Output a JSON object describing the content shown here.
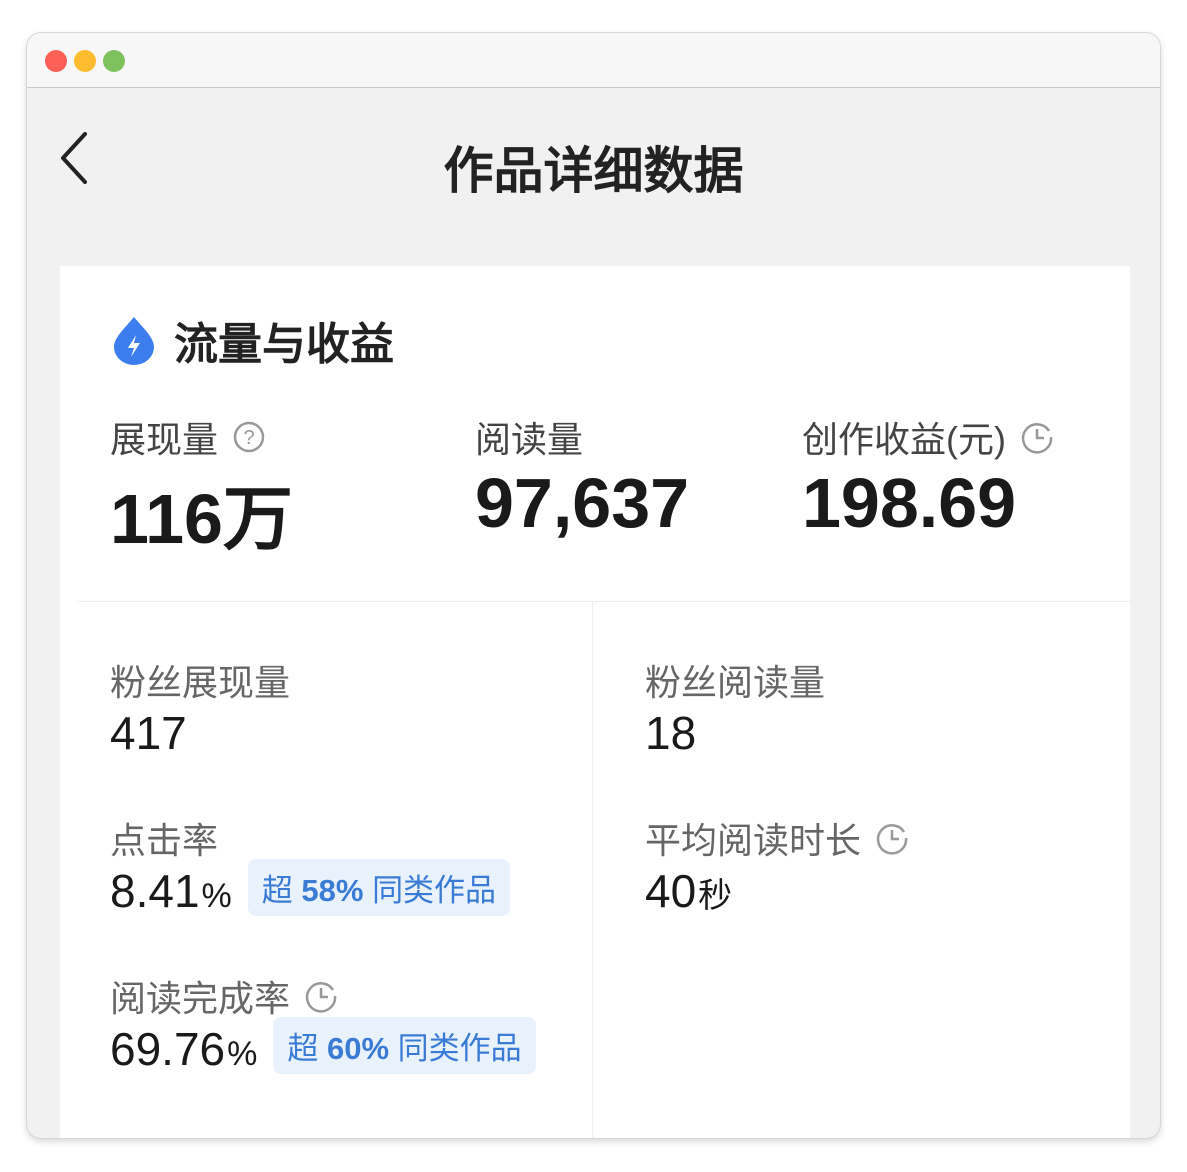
{
  "window": {
    "controls": {
      "close_color": "#fe5f57",
      "minimize_color": "#febc2e",
      "zoom_color": "#7ec25e"
    }
  },
  "header": {
    "title": "作品详细数据",
    "back_icon": "chevron-left-icon"
  },
  "section": {
    "title": "流量与收益",
    "icon": "lightning-drop-icon",
    "accent": "#3c7ef0"
  },
  "top_metrics": [
    {
      "label": "展现量",
      "value": "116万",
      "icon": "question-circle-icon"
    },
    {
      "label": "阅读量",
      "value": "97,637"
    },
    {
      "label": "创作收益(元)",
      "value": "198.69",
      "icon": "clock-icon"
    }
  ],
  "left_metrics": [
    {
      "label": "粉丝展现量",
      "value": "417"
    },
    {
      "label": "点击率",
      "value": "8.41",
      "unit": "%",
      "badge_prefix": "超",
      "badge_value": "58%",
      "badge_suffix": "同类作品"
    },
    {
      "label": "阅读完成率",
      "value": "69.76",
      "unit": "%",
      "icon": "clock-icon",
      "badge_prefix": "超",
      "badge_value": "60%",
      "badge_suffix": "同类作品"
    }
  ],
  "right_metrics": [
    {
      "label": "粉丝阅读量",
      "value": "18"
    },
    {
      "label": "平均阅读时长",
      "value": "40",
      "unit": "秒",
      "icon": "clock-icon"
    }
  ]
}
